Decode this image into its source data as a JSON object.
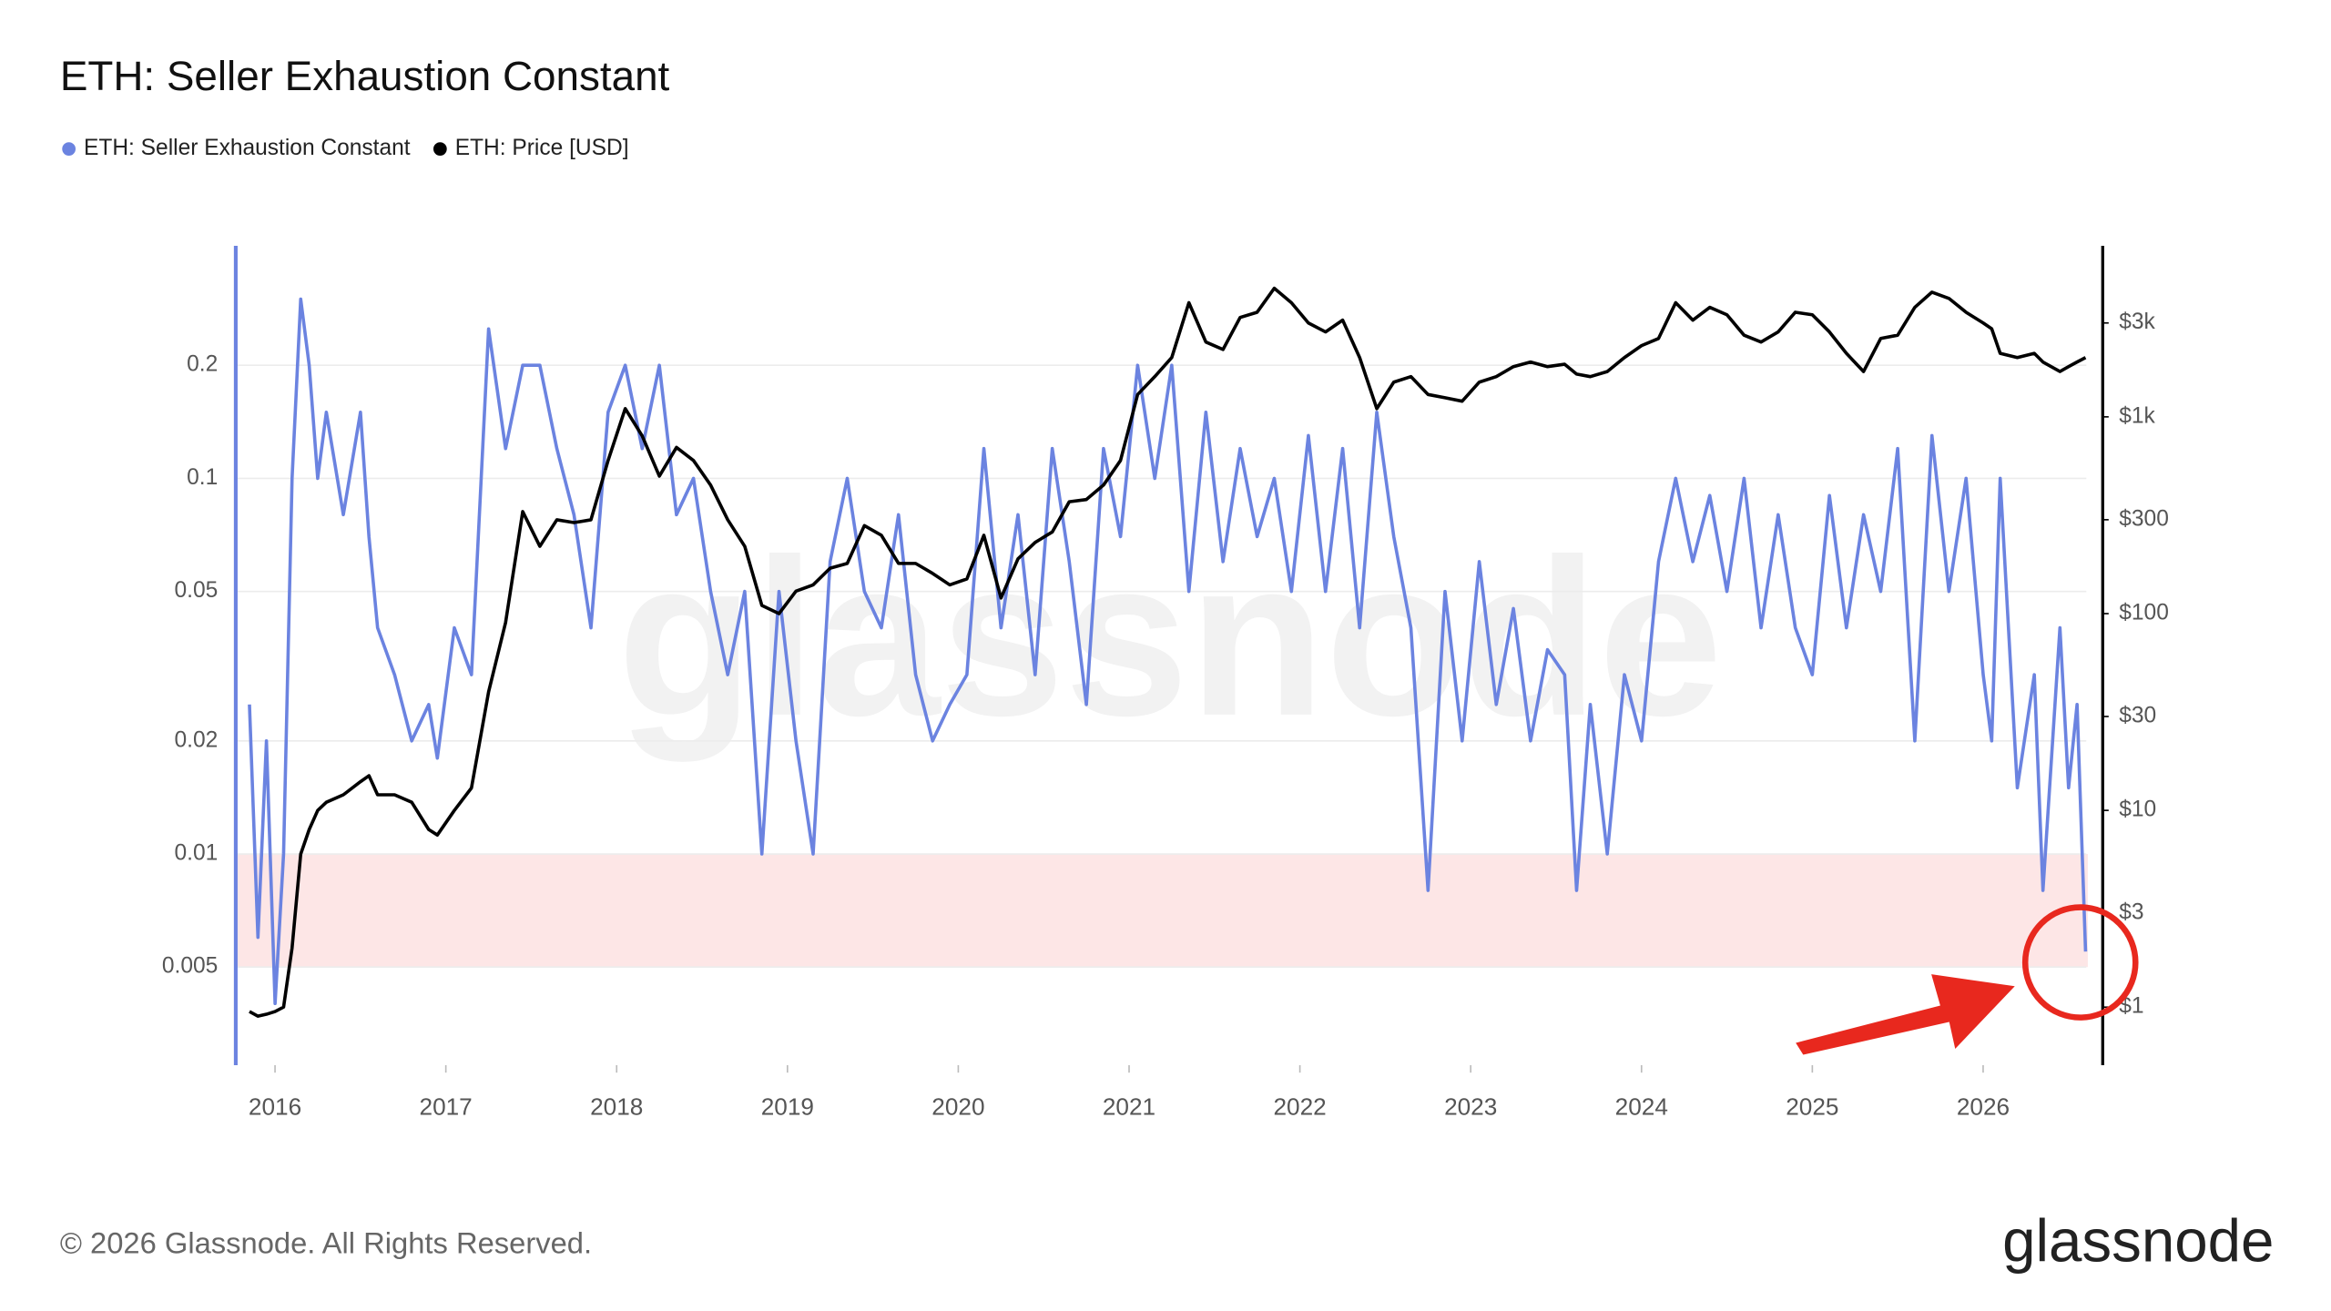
{
  "chart_data": {
    "type": "line",
    "title": "ETH: Seller Exhaustion Constant",
    "watermark": "glassnode",
    "footer": "© 2026 Glassnode. All Rights Reserved.",
    "logo": "glassnode",
    "log_scale_y": true,
    "log_scale_y2": true,
    "grid": true,
    "legend": "top-left",
    "highlight_range": [
      0.005,
      0.01
    ],
    "highlight_color": "#fde6e6",
    "xlim": [
      2015.77,
      2026.7
    ],
    "xticks": [
      2016,
      2017,
      2018,
      2019,
      2020,
      2021,
      2022,
      2023,
      2024,
      2025,
      2026
    ],
    "ylim": [
      0.00274,
      0.416
    ],
    "yticks": [
      0.005,
      0.01,
      0.02,
      0.05,
      0.1,
      0.2
    ],
    "y2lim": [
      0.507,
      7400
    ],
    "y2ticks": [
      {
        "value": 1,
        "label": "$1"
      },
      {
        "value": 3,
        "label": "$3"
      },
      {
        "value": 10,
        "label": "$10"
      },
      {
        "value": 30,
        "label": "$30"
      },
      {
        "value": 100,
        "label": "$100"
      },
      {
        "value": 300,
        "label": "$300"
      },
      {
        "value": 1000,
        "label": "$1k"
      },
      {
        "value": 3000,
        "label": "$3k"
      }
    ],
    "x": [
      2015.85,
      2015.9,
      2015.95,
      2016.0,
      2016.05,
      2016.1,
      2016.15,
      2016.2,
      2016.25,
      2016.3,
      2016.4,
      2016.5,
      2016.55,
      2016.6,
      2016.7,
      2016.8,
      2016.9,
      2016.95,
      2017.05,
      2017.15,
      2017.25,
      2017.35,
      2017.45,
      2017.55,
      2017.65,
      2017.75,
      2017.85,
      2017.95,
      2018.05,
      2018.15,
      2018.25,
      2018.35,
      2018.45,
      2018.55,
      2018.65,
      2018.75,
      2018.85,
      2018.95,
      2019.05,
      2019.15,
      2019.25,
      2019.35,
      2019.45,
      2019.55,
      2019.65,
      2019.75,
      2019.85,
      2019.95,
      2020.05,
      2020.15,
      2020.25,
      2020.35,
      2020.45,
      2020.55,
      2020.65,
      2020.75,
      2020.85,
      2020.95,
      2021.05,
      2021.15,
      2021.25,
      2021.35,
      2021.45,
      2021.55,
      2021.65,
      2021.75,
      2021.85,
      2021.95,
      2022.05,
      2022.15,
      2022.25,
      2022.35,
      2022.45,
      2022.55,
      2022.65,
      2022.75,
      2022.85,
      2022.95,
      2023.05,
      2023.15,
      2023.25,
      2023.35,
      2023.45,
      2023.55,
      2023.62,
      2023.7,
      2023.8,
      2023.9,
      2024.0,
      2024.1,
      2024.2,
      2024.3,
      2024.4,
      2024.5,
      2024.6,
      2024.7,
      2024.8,
      2024.9,
      2025.0,
      2025.1,
      2025.2,
      2025.3,
      2025.4,
      2025.5,
      2025.6,
      2025.7,
      2025.8,
      2025.9,
      2026.0,
      2026.05,
      2026.1,
      2026.2,
      2026.3,
      2026.35,
      2026.45,
      2026.5,
      2026.55,
      2026.6
    ],
    "series": [
      {
        "name": "ETH: Seller Exhaustion Constant",
        "color": "#6b83e0",
        "axis": "y",
        "values": [
          0.025,
          0.006,
          0.02,
          0.004,
          0.01,
          0.1,
          0.3,
          0.2,
          0.1,
          0.15,
          0.08,
          0.15,
          0.07,
          0.04,
          0.03,
          0.02,
          0.025,
          0.018,
          0.04,
          0.03,
          0.25,
          0.12,
          0.2,
          0.2,
          0.12,
          0.08,
          0.04,
          0.15,
          0.2,
          0.12,
          0.2,
          0.08,
          0.1,
          0.05,
          0.03,
          0.05,
          0.01,
          0.05,
          0.02,
          0.01,
          0.06,
          0.1,
          0.05,
          0.04,
          0.08,
          0.03,
          0.02,
          0.025,
          0.03,
          0.12,
          0.04,
          0.08,
          0.03,
          0.12,
          0.06,
          0.025,
          0.12,
          0.07,
          0.2,
          0.1,
          0.2,
          0.05,
          0.15,
          0.06,
          0.12,
          0.07,
          0.1,
          0.05,
          0.13,
          0.05,
          0.12,
          0.04,
          0.15,
          0.07,
          0.04,
          0.008,
          0.05,
          0.02,
          0.06,
          0.025,
          0.045,
          0.02,
          0.035,
          0.03,
          0.008,
          0.025,
          0.01,
          0.03,
          0.02,
          0.06,
          0.1,
          0.06,
          0.09,
          0.05,
          0.1,
          0.04,
          0.08,
          0.04,
          0.03,
          0.09,
          0.04,
          0.08,
          0.05,
          0.12,
          0.02,
          0.13,
          0.05,
          0.1,
          0.03,
          0.02,
          0.1,
          0.015,
          0.03,
          0.008,
          0.04,
          0.015,
          0.025,
          0.0055
        ]
      },
      {
        "name": "ETH: Price [USD]",
        "color": "#000000",
        "axis": "y2",
        "values": [
          0.95,
          0.9,
          0.92,
          0.95,
          1.0,
          2,
          6,
          8,
          10,
          11,
          12,
          14,
          15,
          12,
          12,
          11,
          8,
          7.5,
          10,
          13,
          40,
          90,
          330,
          220,
          300,
          290,
          300,
          600,
          1100,
          800,
          500,
          700,
          600,
          450,
          300,
          220,
          110,
          100,
          130,
          140,
          170,
          180,
          280,
          250,
          180,
          180,
          160,
          140,
          150,
          250,
          120,
          190,
          230,
          260,
          370,
          380,
          450,
          600,
          1300,
          1600,
          2000,
          3800,
          2400,
          2200,
          3200,
          3400,
          4500,
          3800,
          3000,
          2700,
          3100,
          2000,
          1100,
          1500,
          1600,
          1300,
          1250,
          1200,
          1500,
          1600,
          1800,
          1900,
          1800,
          1850,
          1650,
          1600,
          1700,
          2000,
          2300,
          2500,
          3800,
          3100,
          3600,
          3300,
          2600,
          2400,
          2700,
          3400,
          3300,
          2700,
          2100,
          1700,
          2500,
          2600,
          3600,
          4300,
          4000,
          3400,
          3000,
          2800,
          2100,
          2000,
          2100,
          1900,
          1700,
          1800,
          1900,
          2000
        ]
      }
    ]
  }
}
